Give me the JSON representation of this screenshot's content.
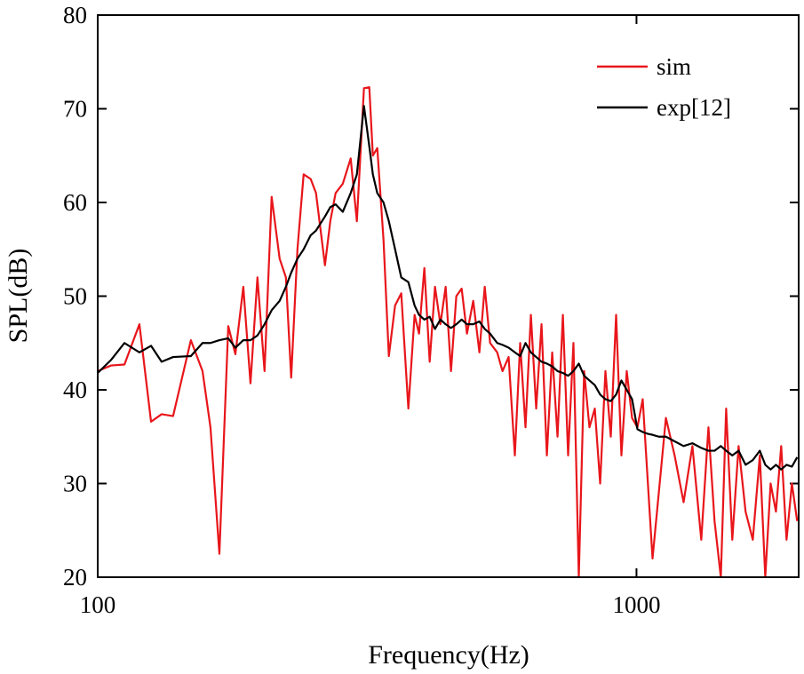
{
  "chart_data": {
    "type": "line",
    "x_label": "Frequency(Hz)",
    "y_label": "SPL(dB)",
    "xscale": "log",
    "xlim": [
      100,
      2000
    ],
    "xticks": [
      100,
      1000
    ],
    "ylim": [
      20,
      80
    ],
    "yticks": [
      20,
      30,
      40,
      50,
      60,
      70,
      80
    ],
    "legend": "upper right",
    "x": [
      100,
      105.9,
      112.1,
      119.5,
      125.6,
      131.4,
      138.0,
      148.9,
      156.5,
      161.9,
      168.2,
      174.7,
      180.1,
      186.3,
      192.1,
      197.9,
      204.0,
      210.3,
      217.6,
      223.5,
      228.6,
      234.8,
      241.1,
      248.5,
      254.2,
      264.1,
      270.2,
      276.4,
      285.0,
      294.8,
      302.7,
      312.0,
      319.2,
      324.1,
      330.3,
      339.2,
      347.0,
      356.4,
      365.9,
      377.2,
      387.4,
      394.8,
      403.9,
      413.2,
      422.7,
      432.5,
      442.4,
      452.6,
      463.0,
      473.7,
      484.6,
      497.7,
      511.0,
      522.8,
      534.9,
      551.4,
      564.1,
      579.0,
      594.6,
      608.3,
      622.3,
      636.8,
      651.4,
      666.4,
      681.8,
      697.5,
      713.6,
      730.1,
      746.6,
      763.8,
      781.5,
      799.5,
      817.9,
      836.8,
      856.2,
      875.7,
      896.0,
      916.6,
      937.6,
      959.2,
      981.3,
      1004,
      1027,
      1050,
      1071,
      1100,
      1134,
      1177,
      1223,
      1270,
      1319,
      1360,
      1396,
      1434,
      1467,
      1506,
      1547,
      1594,
      1644,
      1694,
      1734,
      1774,
      1815,
      1856,
      1899,
      1943,
      1987
    ],
    "series": [
      {
        "name": "sim",
        "color": "#e8161b",
        "values": [
          42,
          42.6,
          42.7,
          47,
          36.6,
          37.4,
          37.2,
          45.3,
          42,
          36,
          22.5,
          46.8,
          43.8,
          51,
          40.7,
          52,
          42,
          60.6,
          54,
          52,
          41.3,
          55,
          63,
          62.5,
          61,
          53.3,
          58,
          61,
          62,
          64.7,
          58,
          72.2,
          72.3,
          65,
          65.8,
          56,
          43.6,
          49,
          50.3,
          38,
          48,
          46,
          53,
          43,
          51,
          47,
          51,
          42,
          50,
          50.8,
          46,
          49.5,
          44,
          51,
          45,
          44,
          42,
          43.5,
          33,
          45,
          36,
          48,
          38,
          47,
          33,
          44,
          35,
          48,
          33,
          45,
          20,
          42,
          36,
          38,
          30,
          42,
          35,
          48,
          33,
          42,
          37,
          36,
          39,
          30,
          22,
          29,
          37,
          33,
          28,
          34,
          24,
          36,
          26,
          20,
          38,
          24,
          34,
          27,
          24,
          33,
          20,
          30,
          27,
          34,
          24,
          30,
          26
        ]
      },
      {
        "name": "exp[12]",
        "color": "#000000",
        "values": [
          41.8,
          43.2,
          45,
          44,
          44.7,
          43,
          43.5,
          43.6,
          45,
          45,
          45.3,
          45.5,
          44.5,
          45.3,
          45.3,
          45.8,
          47,
          48.5,
          49.5,
          51,
          52.5,
          54,
          55,
          56.5,
          57,
          58.5,
          59.5,
          59.8,
          59,
          61,
          63,
          70.3,
          66,
          63,
          61,
          60,
          58,
          55,
          52,
          51.5,
          49,
          48,
          47.5,
          47.8,
          46.5,
          47.5,
          47,
          46.6,
          47,
          47.5,
          47,
          47,
          47.3,
          46.5,
          46,
          45,
          44.8,
          44.5,
          44,
          43.6,
          45,
          44,
          43.5,
          43,
          42.8,
          42.5,
          42,
          41.8,
          41.5,
          42,
          42.8,
          41.5,
          41,
          40.5,
          39.5,
          39,
          38.8,
          39.5,
          41,
          40,
          39,
          35.8,
          35.5,
          35.3,
          35.2,
          35,
          35,
          34.5,
          34,
          34.3,
          33.8,
          33.5,
          33.5,
          34,
          33.5,
          33,
          33.5,
          32,
          32.5,
          33.5,
          32,
          31.5,
          32,
          31.5,
          32,
          31.8,
          32.8
        ]
      }
    ]
  }
}
